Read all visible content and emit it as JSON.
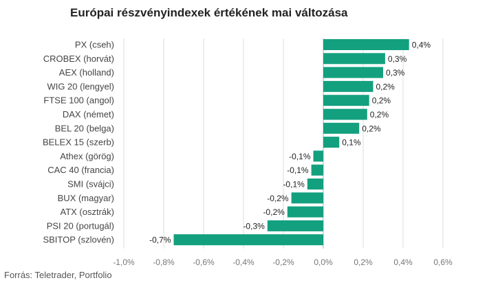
{
  "chart_data": {
    "type": "bar",
    "orientation": "horizontal",
    "title": "Európai részvényindexek értékének mai változása",
    "xlabel": "",
    "ylabel": "",
    "xlim": [
      -1.0,
      0.6
    ],
    "xticks": [
      -1.0,
      -0.8,
      -0.6,
      -0.4,
      -0.2,
      0.0,
      0.2,
      0.4,
      0.6
    ],
    "xtick_labels": [
      "-1,0%",
      "-0,8%",
      "-0,6%",
      "-0,4%",
      "-0,2%",
      "0,0%",
      "0,2%",
      "0,4%",
      "0,6%"
    ],
    "grid": true,
    "color": "#13a07f",
    "categories": [
      "PX (cseh)",
      "CROBEX (horvát)",
      "AEX (holland)",
      "WIG 20 (lengyel)",
      "FTSE 100 (angol)",
      "DAX (német)",
      "BEL 20 (belga)",
      "BELEX 15 (szerb)",
      "Athex (görög)",
      "CAC 40 (francia)",
      "SMI (svájci)",
      "BUX (magyar)",
      "ATX (osztrák)",
      "PSI 20 (portugál)",
      "SBITOP (szlovén)"
    ],
    "values": [
      0.43,
      0.31,
      0.3,
      0.25,
      0.23,
      0.22,
      0.18,
      0.08,
      -0.05,
      -0.06,
      -0.08,
      -0.16,
      -0.18,
      -0.28,
      -0.75
    ],
    "value_labels": [
      "0,4%",
      "0,3%",
      "0,3%",
      "0,2%",
      "0,2%",
      "0,2%",
      "0,2%",
      "0,1%",
      "-0,1%",
      "-0,1%",
      "-0,1%",
      "-0,2%",
      "-0,2%",
      "-0,3%",
      "-0,7%"
    ]
  },
  "source": "Forrás: Teletrader, Portfolio"
}
